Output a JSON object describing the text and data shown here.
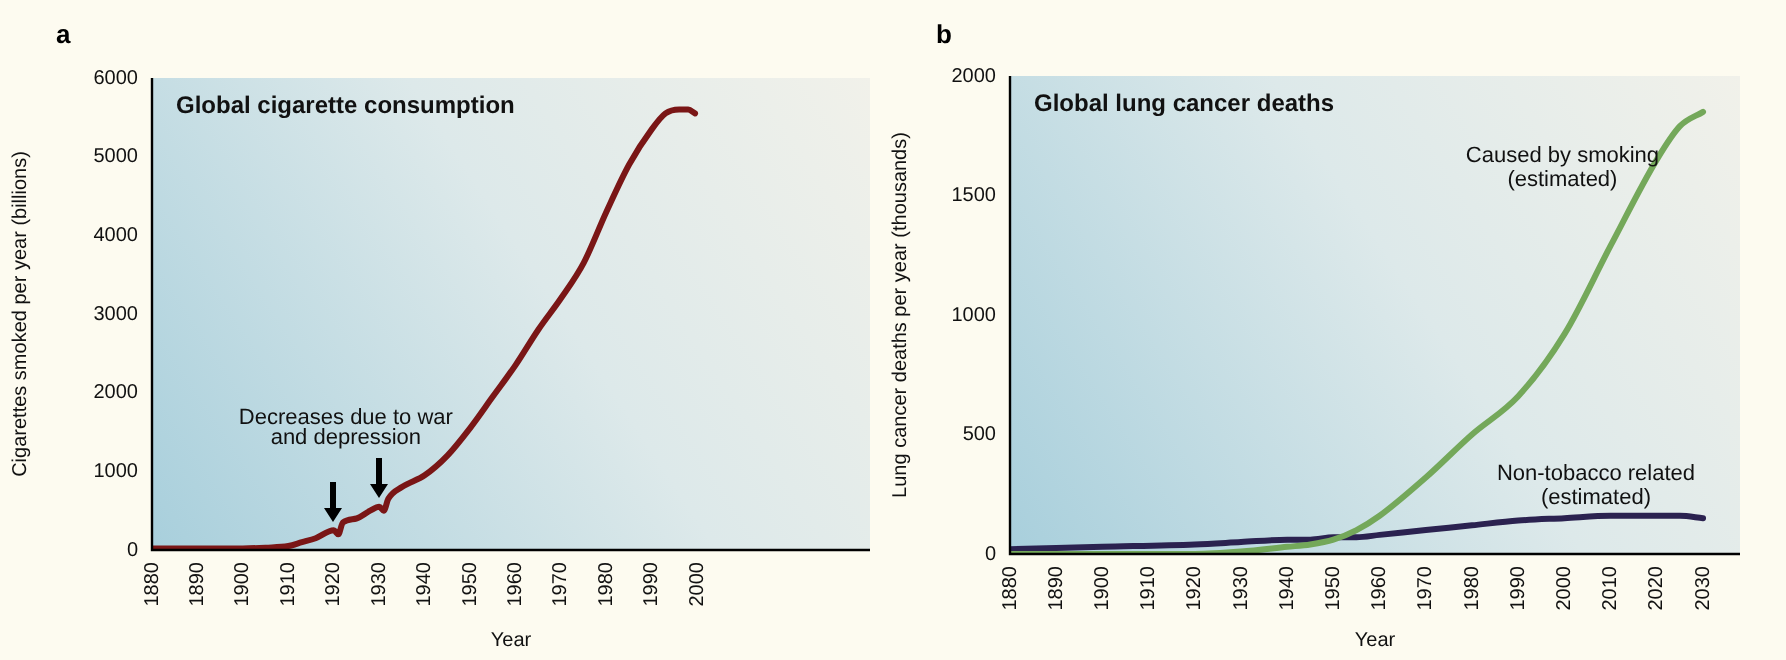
{
  "chart_data": [
    {
      "type": "line",
      "title": "Global cigarette consumption",
      "xlabel": "Year",
      "ylabel": "Cigarettes smoked per year (billions)",
      "annotations": [
        "a",
        "Decreases due to war and depression"
      ],
      "x": [
        1880,
        1890,
        1900,
        1905,
        1910,
        1913,
        1916,
        1920,
        1921,
        1922,
        1925,
        1928,
        1930,
        1931,
        1932,
        1935,
        1940,
        1945,
        1950,
        1955,
        1960,
        1965,
        1970,
        1975,
        1980,
        1985,
        1990,
        1993,
        1996,
        1998,
        1999.5
      ],
      "series": [
        {
          "color": "#7a1616",
          "values": [
            20,
            20,
            20,
            30,
            50,
            100,
            150,
            250,
            200,
            350,
            400,
            500,
            550,
            500,
            650,
            800,
            950,
            1200,
            1550,
            1950,
            2350,
            2800,
            3200,
            3650,
            4300,
            4900,
            5350,
            5550,
            5600,
            5600,
            5550
          ]
        }
      ],
      "xlim": [
        1880,
        2038
      ],
      "xticks": [
        1880,
        1890,
        1900,
        1910,
        1920,
        1930,
        1940,
        1950,
        1960,
        1970,
        1980,
        1990,
        2000
      ],
      "ylim": [
        0,
        6000
      ],
      "yticks": [
        0,
        1000,
        2000,
        3000,
        4000,
        5000,
        6000
      ],
      "marker": "none"
    },
    {
      "type": "line",
      "title": "Global lung cancer deaths",
      "xlabel": "Year",
      "ylabel": "Lung cancer deaths per year (thousands)",
      "annotations": [
        "b"
      ],
      "x": [
        1880,
        1900,
        1920,
        1930,
        1940,
        1945,
        1950,
        1955,
        1960,
        1970,
        1980,
        1990,
        2000,
        2010,
        2020,
        2025,
        2030
      ],
      "series": [
        {
          "name": "Caused by smoking (estimated)",
          "color": "#74a85a",
          "values": [
            0,
            0,
            0,
            10,
            30,
            40,
            60,
            100,
            160,
            320,
            500,
            660,
            920,
            1290,
            1650,
            1790,
            1850
          ]
        },
        {
          "name": "Non-tobacco related (estimated)",
          "color": "#2b2250",
          "values": [
            20,
            30,
            40,
            50,
            60,
            60,
            70,
            70,
            80,
            100,
            120,
            140,
            150,
            160,
            160,
            160,
            150
          ]
        }
      ],
      "xlim": [
        1880,
        2038
      ],
      "xticks": [
        1880,
        1890,
        1900,
        1910,
        1920,
        1930,
        1940,
        1950,
        1960,
        1970,
        1980,
        1990,
        2000,
        2010,
        2020,
        2030
      ],
      "ylim": [
        0,
        2000
      ],
      "yticks": [
        0,
        500,
        1000,
        1500,
        2000
      ],
      "marker": "none"
    }
  ]
}
